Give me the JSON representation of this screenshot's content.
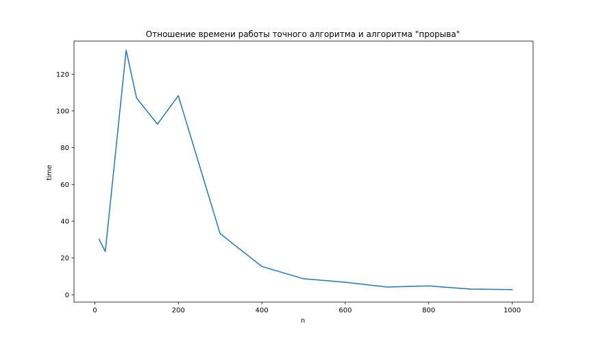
{
  "chart_data": {
    "type": "line",
    "title": "Отношение времени работы точного алгоритма и алгоритма \"прорыва\"",
    "xlabel": "n",
    "ylabel": "time",
    "xlim": [
      -50,
      1050
    ],
    "ylim": [
      -4,
      138
    ],
    "xticks": [
      0,
      200,
      400,
      600,
      800,
      1000
    ],
    "yticks": [
      0,
      20,
      40,
      60,
      80,
      100,
      120
    ],
    "grid": false,
    "legend": "none",
    "series": [
      {
        "color": "#1f77b4",
        "x": [
          10,
          25,
          75,
          100,
          150,
          200,
          300,
          400,
          500,
          600,
          700,
          800,
          900,
          1000
        ],
        "y": [
          30.2,
          23.5,
          133.0,
          107.0,
          92.8,
          108.3,
          33.3,
          15.4,
          8.7,
          6.8,
          4.2,
          4.8,
          3.1,
          2.8
        ]
      }
    ]
  }
}
